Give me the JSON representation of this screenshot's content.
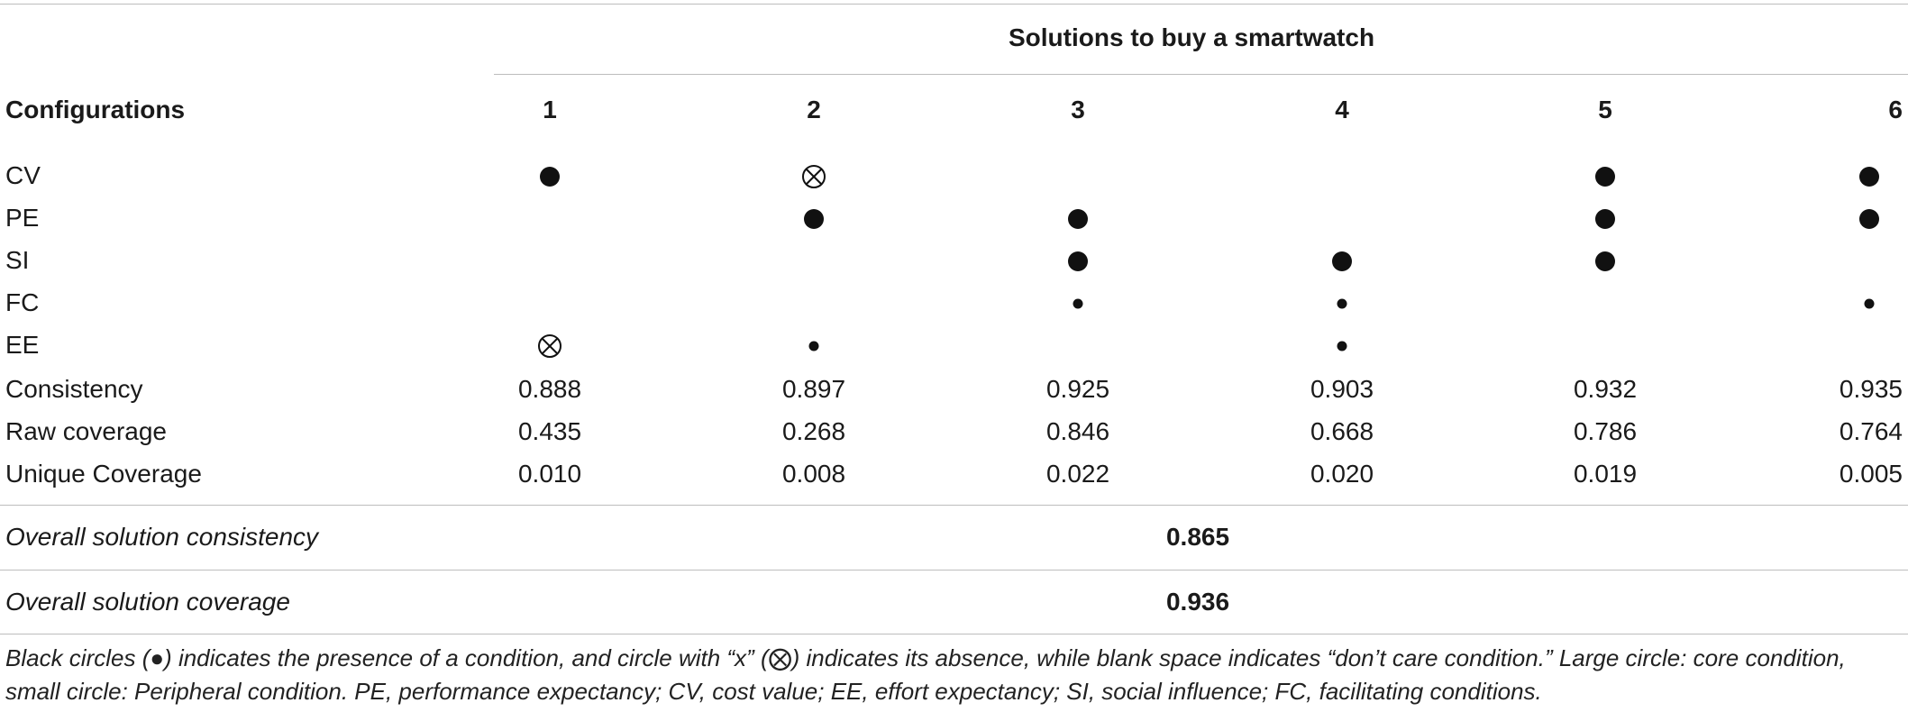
{
  "table": {
    "spanner_title": "Solutions to buy a smartwatch",
    "row_header_label": "Configurations",
    "columns": [
      "1",
      "2",
      "3",
      "4",
      "5",
      "6"
    ],
    "condition_rows": [
      {
        "label": "CV",
        "cells": [
          "core",
          "absent",
          "",
          "",
          "core",
          "core"
        ]
      },
      {
        "label": "PE",
        "cells": [
          "",
          "core",
          "core",
          "",
          "core",
          "core"
        ]
      },
      {
        "label": "SI",
        "cells": [
          "",
          "",
          "core",
          "core",
          "core",
          ""
        ]
      },
      {
        "label": "FC",
        "cells": [
          "",
          "",
          "peripheral",
          "peripheral",
          "",
          "peripheral"
        ]
      },
      {
        "label": "EE",
        "cells": [
          "absent",
          "peripheral",
          "",
          "peripheral",
          "",
          ""
        ]
      }
    ],
    "metric_rows": [
      {
        "label": "Consistency",
        "values": [
          "0.888",
          "0.897",
          "0.925",
          "0.903",
          "0.932",
          "0.935"
        ]
      },
      {
        "label": "Raw coverage",
        "values": [
          "0.435",
          "0.268",
          "0.846",
          "0.668",
          "0.786",
          "0.764"
        ]
      },
      {
        "label": "Unique Coverage",
        "values": [
          "0.010",
          "0.008",
          "0.022",
          "0.020",
          "0.019",
          "0.005"
        ]
      }
    ],
    "overall_consistency": {
      "label": "Overall solution consistency",
      "value": "0.865"
    },
    "overall_coverage": {
      "label": "Overall solution coverage",
      "value": "0.936"
    }
  },
  "footnote": "Black circles (●) indicates the presence of a condition, and circle with “x” (⨂) indicates its absence, while blank space indicates “don’t care condition.” Large circle: core condition, small circle: Peripheral condition. PE, performance expectancy; CV, cost value; EE, effort expectancy; SI, social influence; FC, facilitating conditions."
}
